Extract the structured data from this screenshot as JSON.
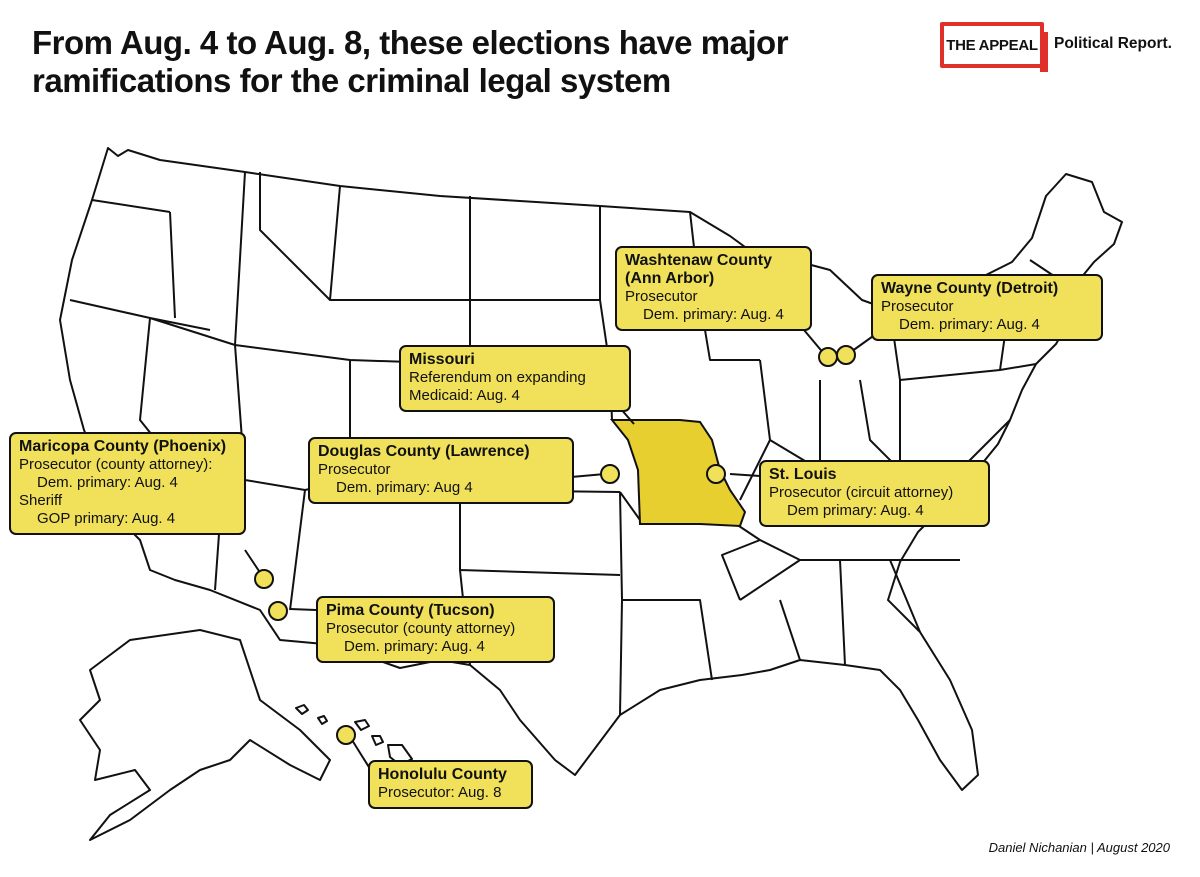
{
  "title": "From Aug. 4 to Aug. 8, these elections have major ramifications for the criminal legal system",
  "brand": {
    "name": "THE APPEAL",
    "subtitle": "Political Report."
  },
  "credit": "Daniel Nichanian | August 2020",
  "colors": {
    "highlight": "#f0e05a",
    "missouri": "#e6cf2e",
    "border": "#111111",
    "brand": "#e0302a"
  },
  "callouts": {
    "washtenaw": {
      "name": "Washtenaw County (Ann Arbor)",
      "line1": "Prosecutor",
      "line2": "Dem. primary: Aug. 4"
    },
    "wayne": {
      "name": "Wayne County (Detroit)",
      "line1": "Prosecutor",
      "line2": "Dem. primary: Aug. 4"
    },
    "missouri": {
      "name": "Missouri",
      "line1": "Referendum on expanding",
      "line2": "Medicaid: Aug. 4"
    },
    "maricopa": {
      "name": "Maricopa County (Phoenix)",
      "line1": "Prosecutor (county attorney):",
      "line2": "Dem. primary: Aug. 4",
      "line3": "Sheriff",
      "line4": "GOP primary: Aug. 4"
    },
    "douglas": {
      "name": "Douglas County (Lawrence)",
      "line1": "Prosecutor",
      "line2": "Dem. primary: Aug 4"
    },
    "stlouis": {
      "name": "St. Louis",
      "line1": "Prosecutor (circuit attorney)",
      "line2": "Dem primary: Aug. 4"
    },
    "pima": {
      "name": "Pima County (Tucson)",
      "line1": "Prosecutor (county attorney)",
      "line2": "Dem. primary: Aug. 4"
    },
    "honolulu": {
      "name": "Honolulu County",
      "line1": "Prosecutor: Aug. 8"
    }
  }
}
